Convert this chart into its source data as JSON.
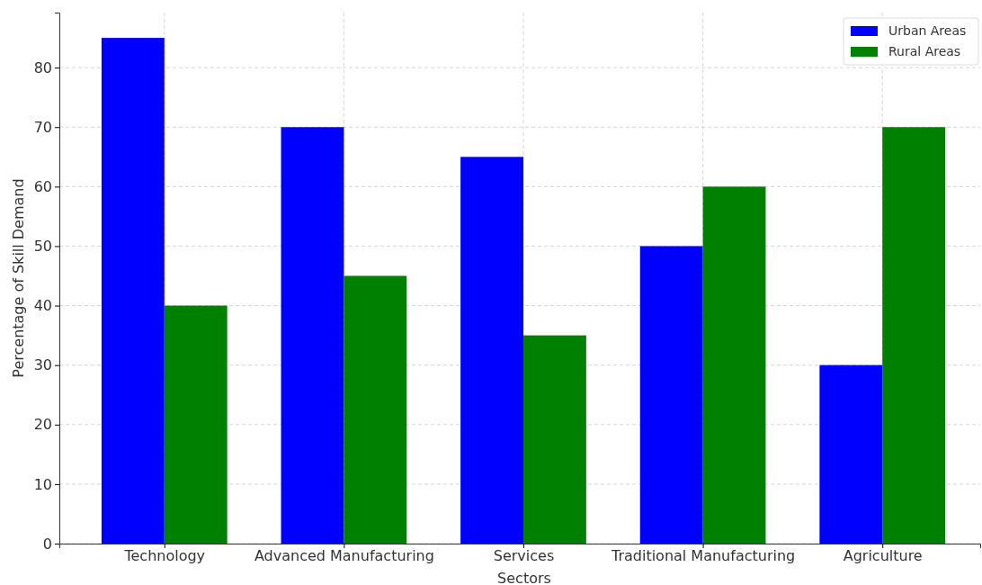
{
  "chart_data": {
    "type": "bar",
    "xlabel": "Sectors",
    "ylabel": "Percentage of Skill Demand",
    "categories": [
      "Technology",
      "Advanced Manufacturing",
      "Services",
      "Traditional Manufacturing",
      "Agriculture"
    ],
    "series": [
      {
        "name": "Urban Areas",
        "color": "#0000ff",
        "values": [
          85,
          70,
          65,
          50,
          30
        ]
      },
      {
        "name": "Rural Areas",
        "color": "#008000",
        "values": [
          40,
          45,
          35,
          60,
          70
        ]
      }
    ],
    "ylim": [
      0,
      89.25
    ],
    "yticks": [
      0,
      10,
      20,
      30,
      40,
      50,
      60,
      70,
      80
    ],
    "grid": true,
    "legend": "top right"
  }
}
